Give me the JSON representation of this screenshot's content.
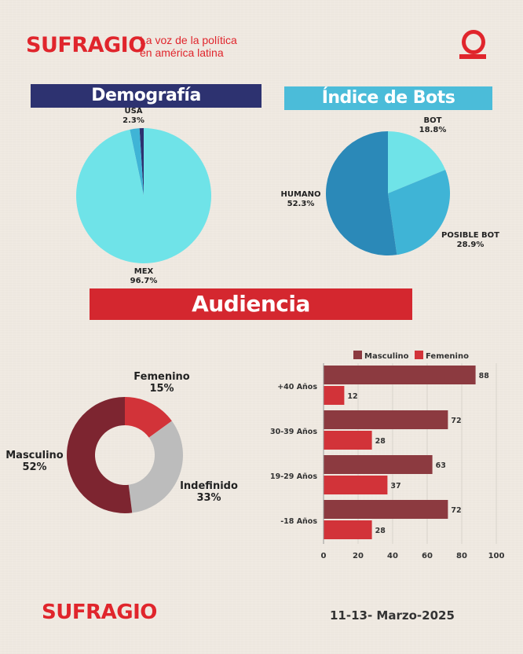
{
  "header": {
    "brand": "SUFRAGIO",
    "tagline_line1": "La voz de la política",
    "tagline_line2": "en américa latina",
    "logo_glyph": "O"
  },
  "colors": {
    "brand_red": "#e0252c",
    "navy": "#2d3270",
    "sky": "#4bbcd9",
    "maroon": "#7d2530",
    "bar_maroon": "#8c3a40",
    "bar_red": "#d23339",
    "grey": "#bcbcbc",
    "cyan_light": "#6fe3e8",
    "cyan_mid": "#3fb4d6",
    "blue_dark": "#2b89b8"
  },
  "sections": {
    "demografia": "Demografía",
    "bots": "Índice de Bots",
    "audiencia": "Audiencia"
  },
  "chart_data": [
    {
      "type": "pie",
      "title": "Demografía",
      "slices": [
        {
          "name": "MEX",
          "value": 96.7,
          "label": "96.7%",
          "color": "#6fe3e8"
        },
        {
          "name": "USA",
          "value": 2.3,
          "label": "2.3%",
          "color": "#3fb4d6"
        },
        {
          "name": "",
          "value": 1.0,
          "label": "",
          "color": "#2d3270"
        }
      ]
    },
    {
      "type": "pie",
      "title": "Índice de Bots",
      "slices": [
        {
          "name": "BOT",
          "value": 18.8,
          "label": "18.8%",
          "color": "#6fe3e8"
        },
        {
          "name": "POSIBLE BOT",
          "value": 28.9,
          "label": "28.9%",
          "color": "#3fb4d6"
        },
        {
          "name": "HUMANO",
          "value": 52.3,
          "label": "52.3%",
          "color": "#2b89b8"
        }
      ]
    },
    {
      "type": "pie",
      "subtype": "donut",
      "slices": [
        {
          "name": "Femenino",
          "value": 15,
          "label": "15%",
          "color": "#d23339"
        },
        {
          "name": "Indefinido",
          "value": 33,
          "label": "33%",
          "color": "#bcbcbc"
        },
        {
          "name": "Masculino",
          "value": 52,
          "label": "52%",
          "color": "#7d2530"
        }
      ]
    },
    {
      "type": "bar",
      "orientation": "horizontal",
      "categories": [
        "+40 Años",
        "30-39 Años",
        "19-29 Años",
        "-18 Años"
      ],
      "series": [
        {
          "name": "Masculino",
          "values": [
            88,
            72,
            63,
            72
          ],
          "color": "#8c3a40"
        },
        {
          "name": "Femenino",
          "values": [
            12,
            28,
            37,
            28
          ],
          "color": "#d23339"
        }
      ],
      "xlim": [
        0,
        100
      ],
      "xticks": [
        "0",
        "20",
        "40",
        "60",
        "80",
        "100"
      ],
      "legend": "top"
    }
  ],
  "footer": {
    "brand": "SUFRAGIO",
    "date": "11-13- Marzo-2025"
  }
}
